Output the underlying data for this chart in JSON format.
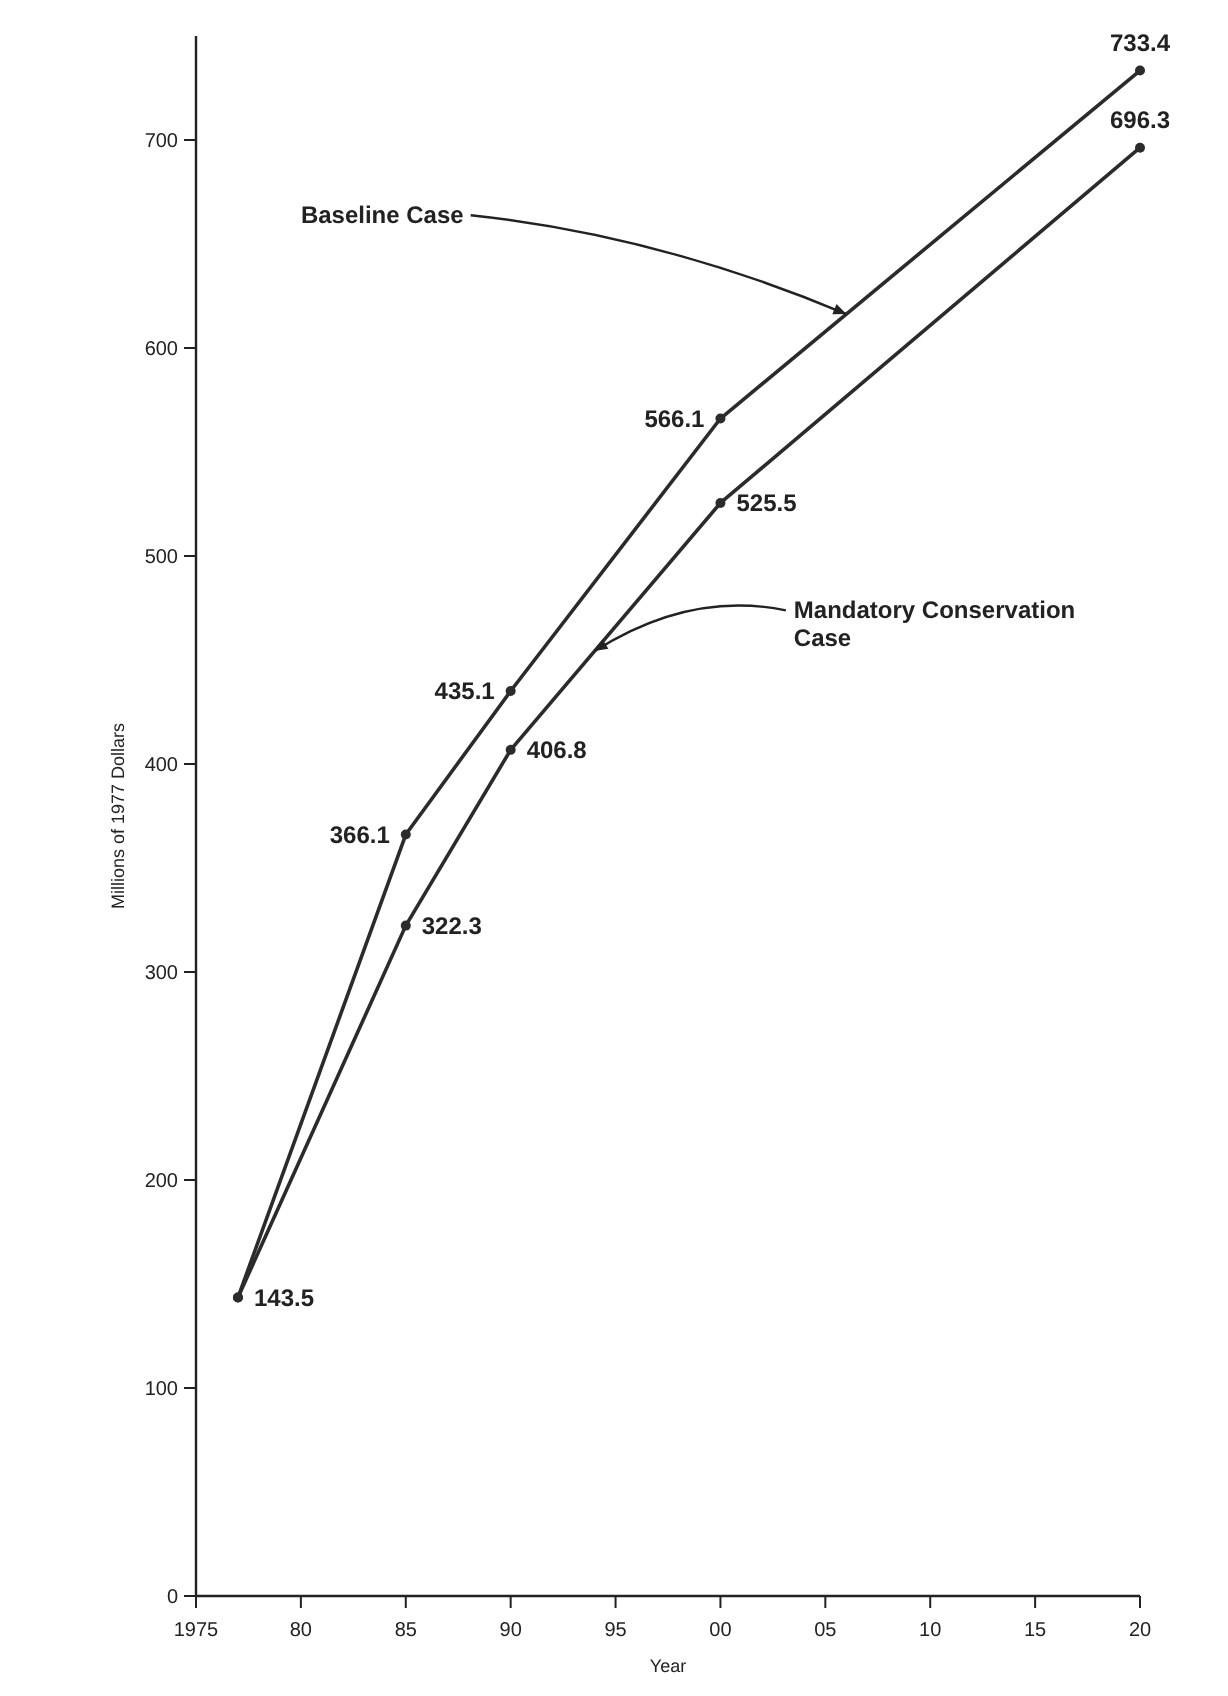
{
  "chart_data": {
    "type": "line",
    "xlabel": "Year",
    "ylabel": "Millions of 1977 Dollars",
    "xlim": [
      1975,
      2020
    ],
    "xticks": [
      {
        "value": 1975,
        "label": "1975"
      },
      {
        "value": 1980,
        "label": "80"
      },
      {
        "value": 1985,
        "label": "85"
      },
      {
        "value": 1990,
        "label": "90"
      },
      {
        "value": 1995,
        "label": "95"
      },
      {
        "value": 2000,
        "label": "00"
      },
      {
        "value": 2005,
        "label": "05"
      },
      {
        "value": 2010,
        "label": "10"
      },
      {
        "value": 2015,
        "label": "15"
      },
      {
        "value": 2020,
        "label": "20"
      }
    ],
    "ylim": [
      0,
      750
    ],
    "yticks": [
      0,
      100,
      200,
      300,
      400,
      500,
      600,
      700
    ],
    "x": [
      1977,
      1985,
      1990,
      2000,
      2020
    ],
    "series": [
      {
        "color": "#2b2b2b",
        "values": [
          143.5,
          366.1,
          435.1,
          566.1,
          733.4
        ],
        "value_labels": [
          "143.5",
          "366.1",
          "435.1",
          "566.1",
          "733.4"
        ]
      },
      {
        "color": "#2b2b2b",
        "values": [
          143.5,
          322.3,
          406.8,
          525.5,
          696.3
        ],
        "value_labels": [
          null,
          "322.3",
          "406.8",
          "525.5",
          "696.3"
        ]
      }
    ],
    "annotations": [
      {
        "text": "Baseline Case",
        "x": 2006,
        "y": 616.3
      },
      {
        "text": "Mandatory Conservation Case",
        "x": 1994,
        "y": 454.3
      }
    ],
    "marker": "circle",
    "line_style": "solid",
    "grid": false
  }
}
